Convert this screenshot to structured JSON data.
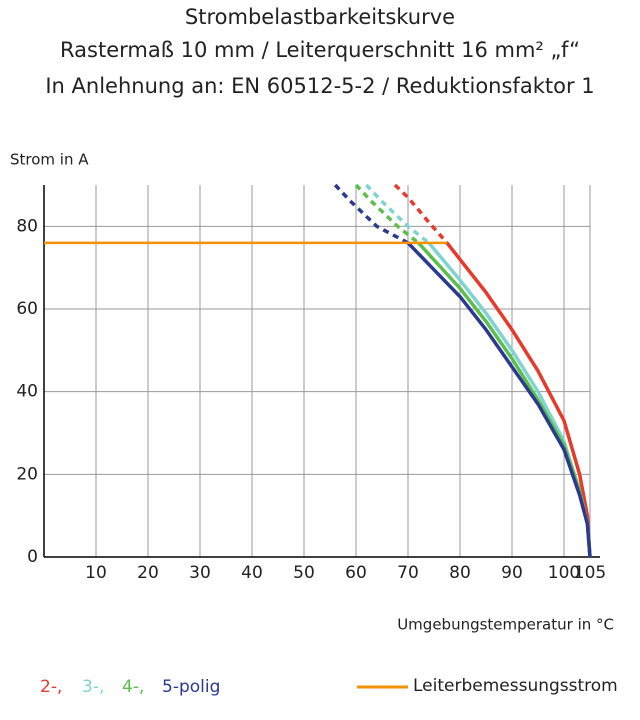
{
  "chart_data": {
    "type": "line",
    "title": [
      "Strombelastbarkeitskurve",
      "Rastermaß 10 mm / Leiterquerschnitt 16 mm² „f“",
      "In Anlehnung an: EN 60512-5-2 / Reduktionsfaktor 1"
    ],
    "y_label": "Strom in A",
    "x_label": "Umgebungstemperatur in °C",
    "xlim": [
      0,
      105
    ],
    "ylim": [
      0,
      90
    ],
    "xticks": [
      10,
      20,
      30,
      40,
      50,
      60,
      70,
      80,
      90,
      100,
      105
    ],
    "yticks": [
      0,
      20,
      40,
      60,
      80
    ],
    "grid": true,
    "series": [
      {
        "name": "2-,",
        "color": "#e8392b",
        "x": [
          67.5,
          70,
          74,
          77.5,
          80,
          85,
          90,
          95,
          100,
          103,
          104.5,
          105
        ],
        "values": [
          90,
          87,
          81,
          76,
          72,
          64,
          55,
          45,
          33,
          20,
          10,
          0
        ]
      },
      {
        "name": "3-,",
        "color": "#7fd3d0",
        "x": [
          62,
          65,
          70,
          74,
          80,
          85,
          90,
          95,
          100,
          103,
          104.5,
          105
        ],
        "values": [
          90,
          86,
          80,
          76,
          67,
          59,
          50,
          40,
          28,
          16,
          8,
          0
        ]
      },
      {
        "name": "4-,",
        "color": "#5bbf4a",
        "x": [
          60,
          63,
          68,
          72,
          80,
          85,
          90,
          95,
          100,
          103,
          104.5,
          105
        ],
        "values": [
          90,
          86,
          80,
          76,
          65,
          57,
          48,
          38,
          27,
          16,
          8,
          0
        ]
      },
      {
        "name": "5-polig",
        "color": "#2b3990",
        "x": [
          56,
          59,
          64,
          70,
          80,
          85,
          90,
          95,
          100,
          103,
          104.5,
          105
        ],
        "values": [
          90,
          86,
          80,
          76,
          63,
          55,
          46,
          37,
          26,
          15,
          8,
          0
        ]
      },
      {
        "name": "Leiterbemessungsstrom",
        "color": "#f39200",
        "x": [
          0,
          77.5
        ],
        "values": [
          76,
          76
        ]
      }
    ]
  }
}
